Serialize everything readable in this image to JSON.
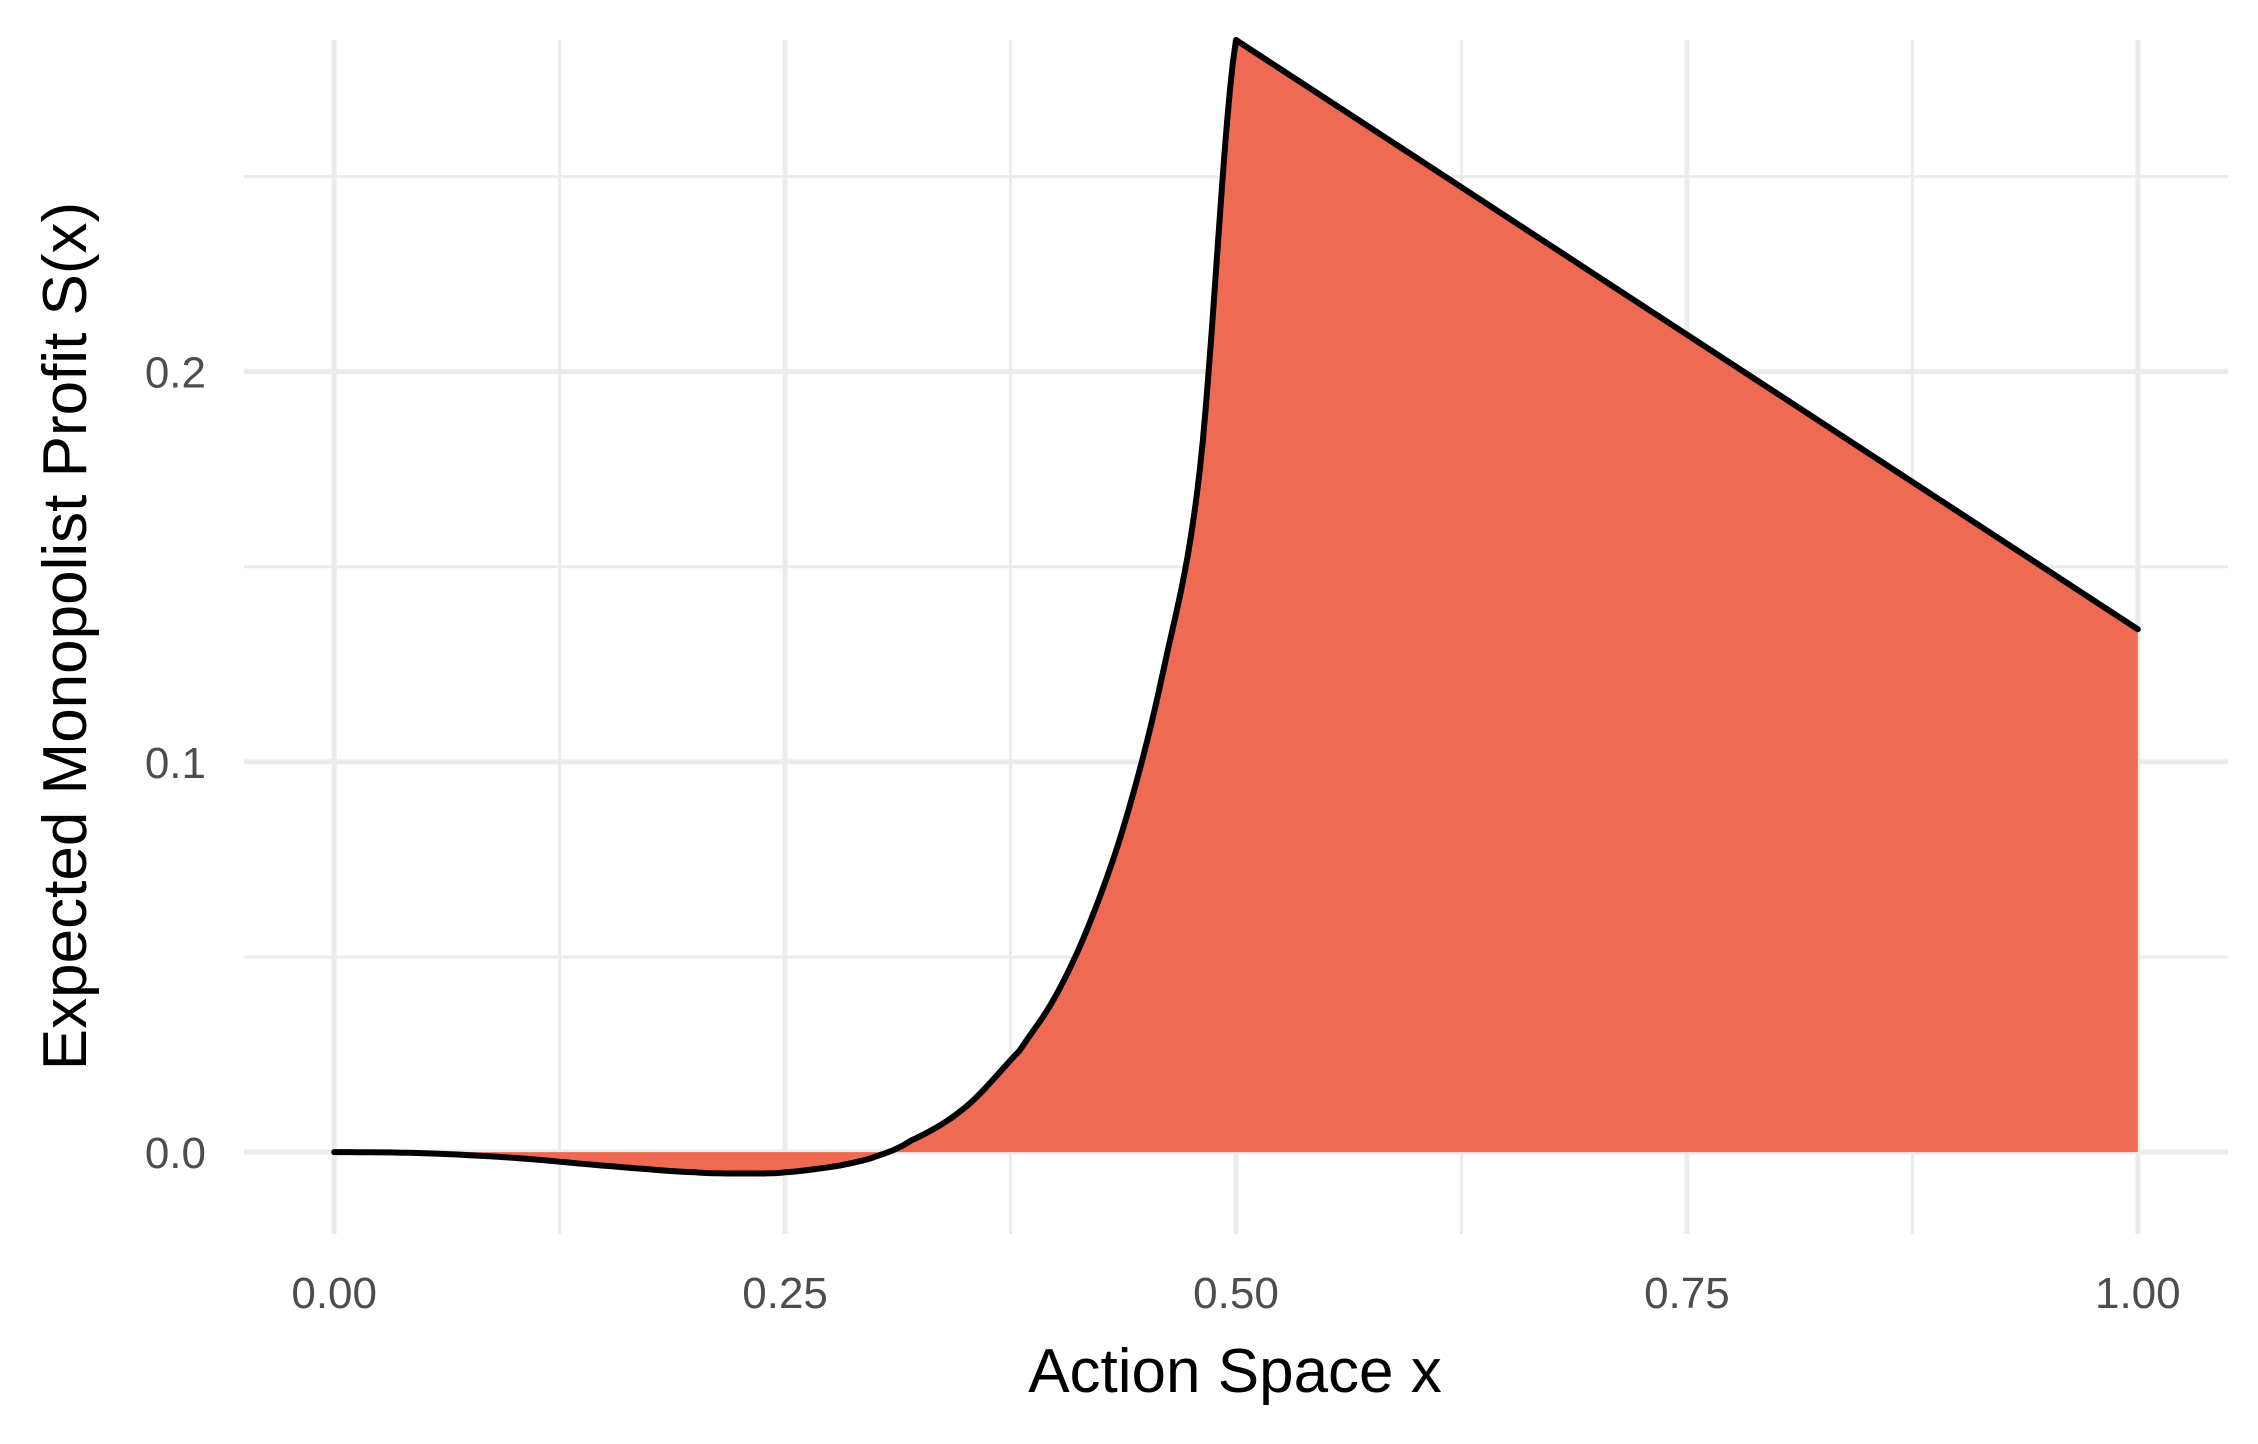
{
  "chart_data": {
    "type": "area",
    "xlabel": "Action Space x",
    "ylabel": "Expected Monopolist Profit S(x)",
    "xlim": [
      -0.05,
      1.05
    ],
    "ylim": [
      -0.021,
      0.285
    ],
    "x_ticks": [
      {
        "value": 0.0,
        "label": "0.00"
      },
      {
        "value": 0.25,
        "label": "0.25"
      },
      {
        "value": 0.5,
        "label": "0.50"
      },
      {
        "value": 0.75,
        "label": "0.75"
      },
      {
        "value": 1.0,
        "label": "1.00"
      }
    ],
    "y_ticks": [
      {
        "value": 0.0,
        "label": "0.0"
      },
      {
        "value": 0.1,
        "label": "0.1"
      },
      {
        "value": 0.2,
        "label": "0.2"
      }
    ],
    "x_minor_grid": [
      0.125,
      0.375,
      0.625,
      0.875
    ],
    "y_minor_grid": [
      0.05,
      0.15,
      0.25
    ],
    "grid": true,
    "legend": "none",
    "colors": {
      "fill": "#EE6A53",
      "line": "#000000",
      "grid": "#EBEBEB"
    },
    "series": [
      {
        "x": [
          0.0,
          0.05,
          0.1,
          0.15,
          0.2,
          0.23,
          0.25,
          0.28,
          0.3,
          0.32,
          0.35,
          0.38,
          0.4,
          0.42,
          0.44,
          0.46,
          0.48,
          0.5,
          0.6,
          0.7,
          0.8,
          0.9,
          1.0
        ],
        "y": [
          0.0,
          -0.0003,
          -0.0015,
          -0.0035,
          -0.0052,
          -0.0055,
          -0.0052,
          -0.0035,
          -0.0012,
          0.003,
          0.0115,
          0.026,
          0.04,
          0.06,
          0.087,
          0.124,
          0.175,
          0.285,
          0.2548,
          0.2246,
          0.1944,
          0.1642,
          0.134
        ]
      }
    ]
  }
}
